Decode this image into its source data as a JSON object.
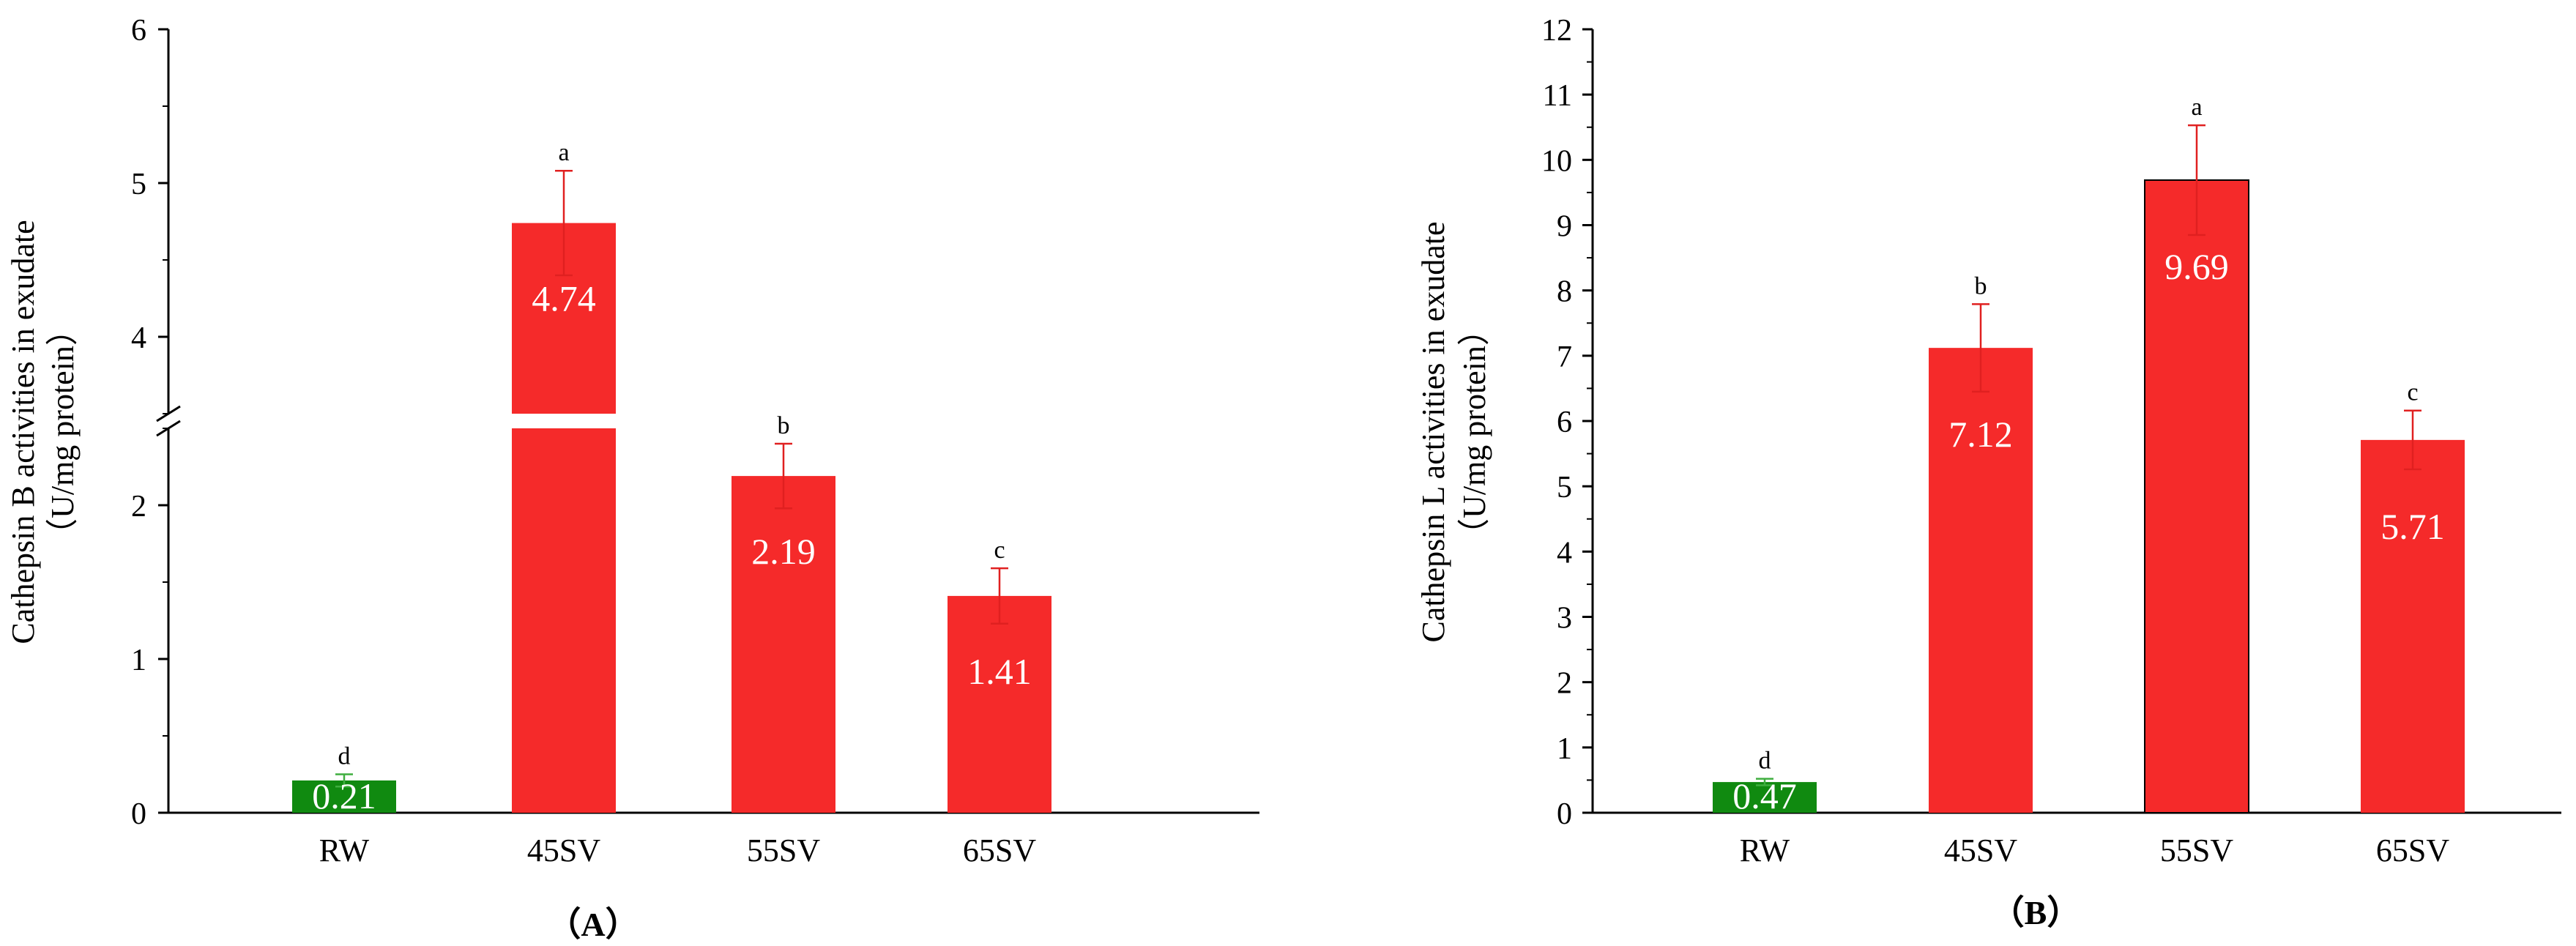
{
  "chart_data": [
    {
      "type": "bar",
      "panel_label": "（A）",
      "ylabel_line1": "Cathepsin B activities in exudate",
      "ylabel_line2": "（U/mg protein）",
      "xlabel": "",
      "categories": [
        "RW",
        "45SV",
        "55SV",
        "65SV"
      ],
      "values": [
        0.21,
        4.74,
        2.19,
        1.41
      ],
      "value_labels": [
        "0.21",
        "4.74",
        "2.19",
        "1.41"
      ],
      "errors": [
        0.04,
        0.34,
        0.21,
        0.18
      ],
      "significance": [
        "d",
        "a",
        "b",
        "c"
      ],
      "colors": [
        "#108a10",
        "#f52a2a",
        "#f52a2a",
        "#f52a2a"
      ],
      "axis_break": {
        "lower_max": 2.6,
        "upper_min": 3.5,
        "upper_max": 6
      },
      "yticks_lower": [
        "0",
        "1",
        "2"
      ],
      "yticks_upper": [
        "4",
        "5",
        "6"
      ],
      "ylim": [
        0,
        6
      ]
    },
    {
      "type": "bar",
      "panel_label": "（B）",
      "ylabel_line1": "Cathepsin L activities in exudate",
      "ylabel_line2": "（U/mg protein）",
      "xlabel": "",
      "categories": [
        "RW",
        "45SV",
        "55SV",
        "65SV"
      ],
      "values": [
        0.47,
        7.12,
        9.69,
        5.71
      ],
      "value_labels": [
        "0.47",
        "7.12",
        "9.69",
        "5.71"
      ],
      "errors": [
        0.05,
        0.67,
        0.84,
        0.45
      ],
      "significance": [
        "d",
        "b",
        "a",
        "c"
      ],
      "colors": [
        "#108a10",
        "#f52a2a",
        "#f52a2a",
        "#f52a2a"
      ],
      "yticks": [
        "0",
        "1",
        "2",
        "3",
        "4",
        "5",
        "6",
        "7",
        "8",
        "9",
        "10",
        "11",
        "12"
      ],
      "ylim": [
        0,
        12
      ]
    }
  ]
}
